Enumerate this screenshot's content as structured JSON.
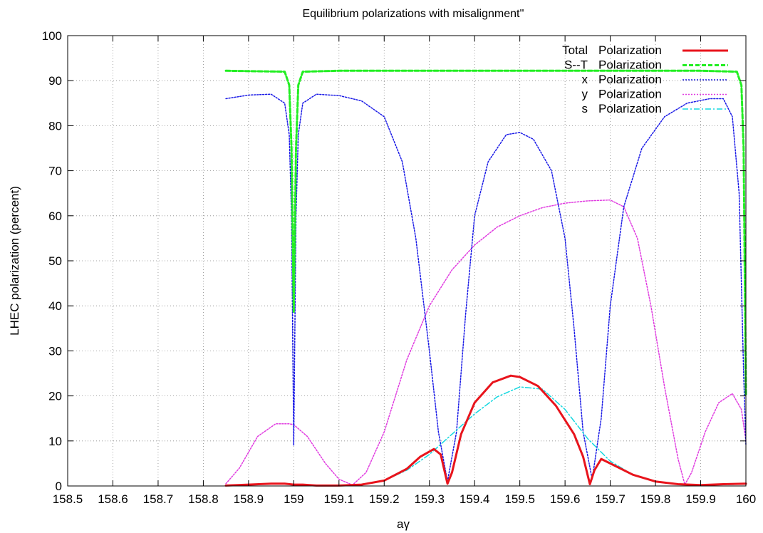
{
  "chart_data": {
    "type": "line",
    "title": "Equilibrium polarizations with misalignment''",
    "xlabel": "aγ",
    "ylabel": "LHEC polarization (percent)",
    "xlim": [
      158.5,
      160
    ],
    "ylim": [
      0,
      100
    ],
    "xticks": [
      158.5,
      158.6,
      158.7,
      158.8,
      158.9,
      159,
      159.1,
      159.2,
      159.3,
      159.4,
      159.5,
      159.6,
      159.7,
      159.8,
      159.9,
      160
    ],
    "xtick_labels": [
      "158.5",
      "158.6",
      "158.7",
      "158.8",
      "158.9",
      "159",
      "159.1",
      "159.2",
      "159.3",
      "159.4",
      "159.5",
      "159.6",
      "159.7",
      "159.8",
      "159.9",
      "160"
    ],
    "yticks": [
      0,
      10,
      20,
      30,
      40,
      50,
      60,
      70,
      80,
      90,
      100
    ],
    "ytick_labels": [
      "0",
      "10",
      "20",
      "30",
      "40",
      "50",
      "60",
      "70",
      "80",
      "90",
      "100"
    ],
    "grid": true,
    "legend_position": "top-right",
    "series": [
      {
        "name": "Total Polarization",
        "legend_key": "Total",
        "legend_word": "Polarization",
        "color": "#e8141c",
        "style": "solid",
        "width": 3,
        "x": [
          158.85,
          158.9,
          158.95,
          158.98,
          159.0,
          159.02,
          159.05,
          159.1,
          159.15,
          159.2,
          159.25,
          159.28,
          159.31,
          159.325,
          159.34,
          159.35,
          159.37,
          159.4,
          159.44,
          159.48,
          159.5,
          159.54,
          159.58,
          159.62,
          159.64,
          159.655,
          159.665,
          159.68,
          159.7,
          159.75,
          159.8,
          159.85,
          159.9,
          159.95,
          160.0
        ],
        "y": [
          0.1,
          0.3,
          0.5,
          0.5,
          0.3,
          0.3,
          0.1,
          0.1,
          0.3,
          1.2,
          3.8,
          6.5,
          8.2,
          7.0,
          0.5,
          3.0,
          11.5,
          18.5,
          23.0,
          24.5,
          24.2,
          22.2,
          17.8,
          11.5,
          6.5,
          0.4,
          3.5,
          6.0,
          5.0,
          2.5,
          1.0,
          0.4,
          0.2,
          0.4,
          0.5
        ]
      },
      {
        "name": "S--T Polarization",
        "legend_key": "S--T",
        "legend_word": "Polarization",
        "color": "#22ee22",
        "style": "dashed",
        "width": 3,
        "x": [
          158.85,
          158.98,
          158.99,
          158.995,
          159.0,
          159.005,
          159.01,
          159.02,
          159.1,
          159.5,
          159.9,
          159.98,
          159.99,
          159.995,
          160.0
        ],
        "y": [
          92.2,
          92.0,
          89.0,
          75.0,
          38.5,
          75.0,
          89.0,
          92.0,
          92.2,
          92.2,
          92.2,
          92.0,
          89.0,
          75.0,
          20.0
        ]
      },
      {
        "name": "x Polarization",
        "legend_key": "x",
        "legend_word": "Polarization",
        "color": "#1a1ae6",
        "style": "dotted",
        "width": 1.5,
        "x": [
          158.85,
          158.9,
          158.95,
          158.98,
          158.99,
          158.995,
          159.0,
          159.005,
          159.01,
          159.02,
          159.05,
          159.1,
          159.15,
          159.2,
          159.24,
          159.27,
          159.3,
          159.32,
          159.34,
          159.36,
          159.38,
          159.4,
          159.43,
          159.47,
          159.5,
          159.53,
          159.57,
          159.6,
          159.62,
          159.64,
          159.66,
          159.68,
          159.7,
          159.73,
          159.77,
          159.82,
          159.87,
          159.92,
          159.95,
          159.97,
          159.985,
          159.995,
          160.0
        ],
        "y": [
          86.0,
          86.8,
          87.0,
          85.0,
          78.0,
          60.0,
          9.0,
          60.0,
          78.0,
          85.0,
          87.0,
          86.7,
          85.5,
          82.0,
          72.0,
          55.0,
          30.0,
          12.0,
          1.0,
          12.0,
          38.0,
          60.0,
          72.0,
          78.0,
          78.5,
          77.0,
          70.0,
          55.0,
          35.0,
          12.0,
          1.5,
          15.0,
          40.0,
          62.0,
          75.0,
          82.0,
          85.0,
          86.0,
          86.0,
          82.0,
          65.0,
          25.0,
          9.0
        ]
      },
      {
        "name": "y Polarization",
        "legend_key": "y",
        "legend_word": "Polarization",
        "color": "#e03ce0",
        "style": "dotted",
        "width": 1.5,
        "x": [
          158.85,
          158.88,
          158.92,
          158.96,
          158.99,
          159.0,
          159.03,
          159.07,
          159.1,
          159.13,
          159.16,
          159.2,
          159.25,
          159.3,
          159.35,
          159.4,
          159.45,
          159.5,
          159.55,
          159.6,
          159.65,
          159.7,
          159.73,
          159.76,
          159.79,
          159.82,
          159.85,
          159.865,
          159.88,
          159.91,
          159.94,
          159.97,
          159.99,
          160.0
        ],
        "y": [
          0.5,
          4.0,
          11.0,
          13.8,
          13.8,
          13.6,
          11.0,
          5.0,
          1.5,
          0.2,
          3.0,
          12.0,
          28.0,
          40.0,
          48.0,
          53.5,
          57.5,
          60.0,
          61.8,
          62.8,
          63.3,
          63.5,
          62.0,
          55.0,
          40.0,
          22.0,
          6.0,
          0.3,
          3.0,
          12.0,
          18.5,
          20.5,
          17.0,
          10.0
        ]
      },
      {
        "name": "s Polarization",
        "legend_key": "s",
        "legend_word": "Polarization",
        "color": "#14d8e0",
        "style": "dashdot",
        "width": 1.5,
        "x": [
          158.85,
          158.9,
          158.95,
          158.98,
          159.0,
          159.02,
          159.05,
          159.1,
          159.15,
          159.2,
          159.25,
          159.3,
          159.35,
          159.4,
          159.45,
          159.5,
          159.55,
          159.6,
          159.65,
          159.7,
          159.75,
          159.8,
          159.85,
          159.9,
          159.95,
          160.0
        ],
        "y": [
          0.1,
          0.3,
          0.5,
          0.5,
          0.3,
          0.3,
          0.1,
          0.1,
          0.3,
          1.2,
          3.5,
          7.0,
          11.5,
          16.0,
          19.8,
          22.0,
          21.5,
          17.0,
          10.5,
          5.5,
          2.5,
          1.0,
          0.4,
          0.2,
          0.3,
          0.4
        ]
      }
    ]
  }
}
